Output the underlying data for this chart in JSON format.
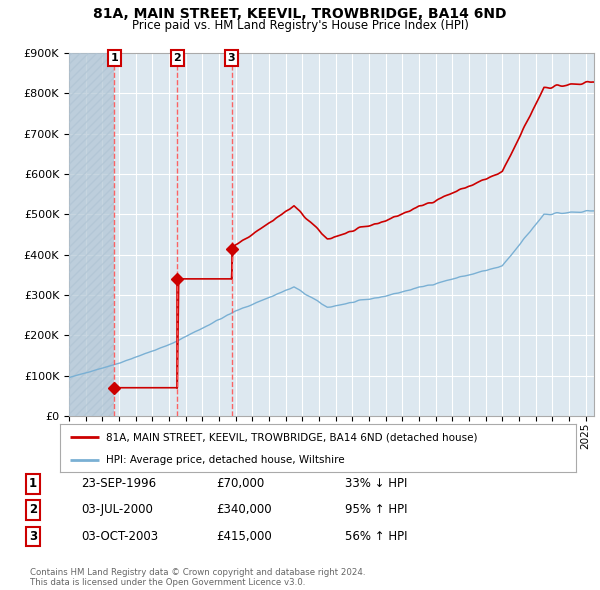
{
  "title": "81A, MAIN STREET, KEEVIL, TROWBRIDGE, BA14 6ND",
  "subtitle": "Price paid vs. HM Land Registry's House Price Index (HPI)",
  "transactions": [
    {
      "date_str": "23-SEP-1996",
      "year": 1996.72,
      "price": 70000,
      "label": "1"
    },
    {
      "date_str": "03-JUL-2000",
      "year": 2000.5,
      "price": 340000,
      "label": "2"
    },
    {
      "date_str": "03-OCT-2003",
      "year": 2003.75,
      "price": 415000,
      "label": "3"
    }
  ],
  "legend_property": "81A, MAIN STREET, KEEVIL, TROWBRIDGE, BA14 6ND (detached house)",
  "legend_hpi": "HPI: Average price, detached house, Wiltshire",
  "table_rows": [
    [
      "1",
      "23-SEP-1996",
      "£70,000",
      "33% ↓ HPI"
    ],
    [
      "2",
      "03-JUL-2000",
      "£340,000",
      "95% ↑ HPI"
    ],
    [
      "3",
      "03-OCT-2003",
      "£415,000",
      "56% ↑ HPI"
    ]
  ],
  "footer": "Contains HM Land Registry data © Crown copyright and database right 2024.\nThis data is licensed under the Open Government Licence v3.0.",
  "ylim": [
    0,
    900000
  ],
  "xlim": [
    1994.0,
    2025.5
  ],
  "property_line_color": "#cc0000",
  "hpi_line_color": "#7ab0d4",
  "marker_color": "#cc0000",
  "dashed_line_color": "#ff5555",
  "chart_bg_color": "#dde8f0",
  "hatch_color": "#b0c4d4",
  "background_color": "#ffffff",
  "grid_color": "#ffffff"
}
